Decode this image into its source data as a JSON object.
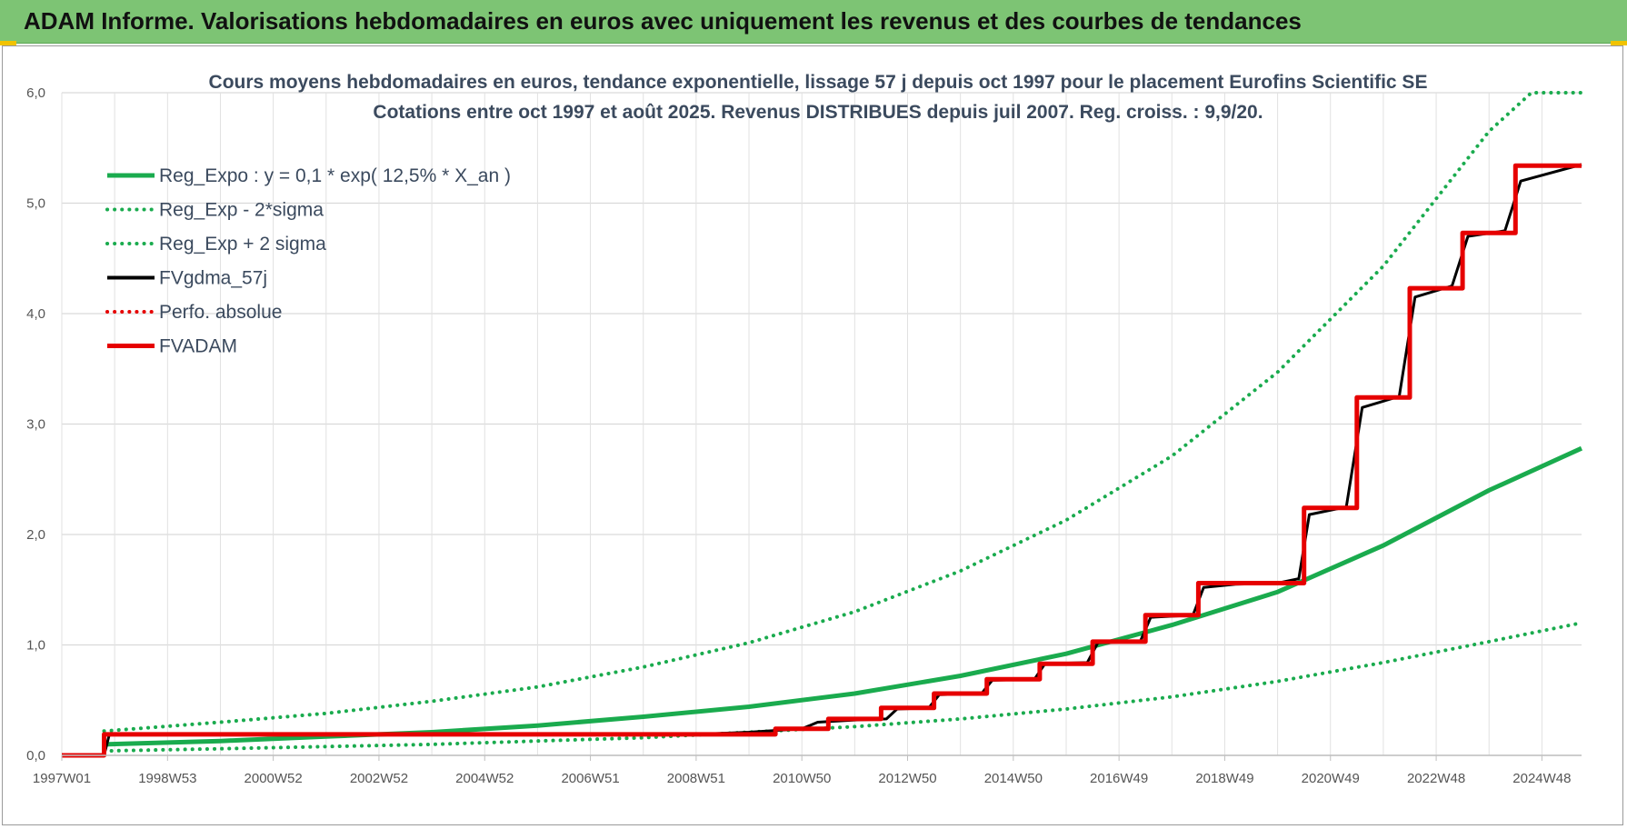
{
  "header": {
    "title": "ADAM Informe. Valorisations hebdomadaires en euros avec uniquement les revenus et des courbes de tendances",
    "background_color": "#7dc474"
  },
  "chart_data": {
    "type": "line",
    "title_lines": [
      "Cours moyens hebdomadaires en euros, tendance exponentielle, lissage 57 j depuis oct 1997 pour le placement Eurofins Scientific SE",
      "Cotations entre oct 1997 et août 2025.  Revenus DISTRIBUES depuis juil 2007.  Reg. croiss. : 9,9/20."
    ],
    "xlabel": "",
    "ylabel": "",
    "x_range": [
      1997.0,
      2025.75
    ],
    "ylim": [
      0,
      6
    ],
    "y_ticks": [
      "0,0",
      "1,0",
      "2,0",
      "3,0",
      "4,0",
      "5,0",
      "6,0"
    ],
    "x_tick_labels": [
      "1997W01",
      "1998W53",
      "2000W52",
      "2002W52",
      "2004W52",
      "2006W51",
      "2008W51",
      "2010W50",
      "2012W50",
      "2014W50",
      "2016W49",
      "2018W49",
      "2020W49",
      "2022W48",
      "2024W48"
    ],
    "x_tick_positions": [
      1997.0,
      1999.0,
      2001.0,
      2003.0,
      2005.0,
      2007.0,
      2009.0,
      2011.0,
      2013.0,
      2015.0,
      2017.0,
      2019.0,
      2021.0,
      2023.0,
      2025.0
    ],
    "grid": true,
    "legend_position": "top-left",
    "series": [
      {
        "name": "Reg_Expo : y = 0,1 * exp( 12,5% *  X_an )",
        "color": "#1aab4e",
        "style": "solid",
        "points": [
          [
            1997.8,
            0.1
          ],
          [
            2000,
            0.13
          ],
          [
            2002,
            0.17
          ],
          [
            2004,
            0.21
          ],
          [
            2006,
            0.27
          ],
          [
            2008,
            0.35
          ],
          [
            2010,
            0.44
          ],
          [
            2012,
            0.56
          ],
          [
            2014,
            0.72
          ],
          [
            2016,
            0.92
          ],
          [
            2018,
            1.18
          ],
          [
            2020,
            1.48
          ],
          [
            2022,
            1.9
          ],
          [
            2024,
            2.4
          ],
          [
            2025.75,
            2.78
          ]
        ]
      },
      {
        "name": "Reg_Exp - 2*sigma",
        "color": "#1aab4e",
        "style": "dotted",
        "points": [
          [
            1997.8,
            0.04
          ],
          [
            2000,
            0.06
          ],
          [
            2002,
            0.08
          ],
          [
            2004,
            0.1
          ],
          [
            2006,
            0.13
          ],
          [
            2008,
            0.16
          ],
          [
            2010,
            0.21
          ],
          [
            2012,
            0.26
          ],
          [
            2014,
            0.33
          ],
          [
            2016,
            0.42
          ],
          [
            2018,
            0.53
          ],
          [
            2020,
            0.67
          ],
          [
            2022,
            0.84
          ],
          [
            2024,
            1.03
          ],
          [
            2025.75,
            1.2
          ]
        ]
      },
      {
        "name": "Reg_Exp + 2 sigma",
        "color": "#1aab4e",
        "style": "dotted",
        "points": [
          [
            1997.8,
            0.22
          ],
          [
            2000,
            0.3
          ],
          [
            2002,
            0.38
          ],
          [
            2004,
            0.49
          ],
          [
            2006,
            0.62
          ],
          [
            2008,
            0.8
          ],
          [
            2010,
            1.02
          ],
          [
            2012,
            1.3
          ],
          [
            2014,
            1.67
          ],
          [
            2016,
            2.13
          ],
          [
            2018,
            2.71
          ],
          [
            2020,
            3.47
          ],
          [
            2022,
            4.43
          ],
          [
            2024,
            5.65
          ],
          [
            2024.8,
            6.0
          ],
          [
            2025.75,
            6.0
          ]
        ]
      },
      {
        "name": "FVgdma_57j",
        "color": "#000000",
        "style": "solid",
        "points": [
          [
            1997.0,
            0.0
          ],
          [
            1997.8,
            0.0
          ],
          [
            1997.9,
            0.19
          ],
          [
            2009,
            0.19
          ],
          [
            2010,
            0.21
          ],
          [
            2011,
            0.24
          ],
          [
            2011.3,
            0.3
          ],
          [
            2012,
            0.32
          ],
          [
            2012.6,
            0.33
          ],
          [
            2012.8,
            0.42
          ],
          [
            2013.4,
            0.43
          ],
          [
            2013.6,
            0.55
          ],
          [
            2014.4,
            0.56
          ],
          [
            2014.6,
            0.68
          ],
          [
            2015.4,
            0.69
          ],
          [
            2015.6,
            0.83
          ],
          [
            2016.4,
            0.84
          ],
          [
            2016.6,
            1.02
          ],
          [
            2017.4,
            1.03
          ],
          [
            2017.6,
            1.25
          ],
          [
            2018.4,
            1.27
          ],
          [
            2018.6,
            1.52
          ],
          [
            2019.2,
            1.55
          ],
          [
            2020.0,
            1.56
          ],
          [
            2020.4,
            1.6
          ],
          [
            2020.6,
            2.18
          ],
          [
            2021.3,
            2.25
          ],
          [
            2021.6,
            3.15
          ],
          [
            2022.3,
            3.25
          ],
          [
            2022.6,
            4.15
          ],
          [
            2023.3,
            4.25
          ],
          [
            2023.6,
            4.7
          ],
          [
            2024.3,
            4.75
          ],
          [
            2024.6,
            5.2
          ],
          [
            2025.75,
            5.35
          ]
        ]
      },
      {
        "name": "Perfo. absolue",
        "color": "#e60000",
        "style": "dotted",
        "points": []
      },
      {
        "name": "FVADAM",
        "color": "#e60000",
        "style": "solid",
        "points": [
          [
            1997.0,
            0.0
          ],
          [
            1997.8,
            0.0
          ],
          [
            1997.8,
            0.19
          ],
          [
            2010.5,
            0.19
          ],
          [
            2010.5,
            0.24
          ],
          [
            2011.5,
            0.24
          ],
          [
            2011.5,
            0.33
          ],
          [
            2012.5,
            0.33
          ],
          [
            2012.5,
            0.43
          ],
          [
            2013.5,
            0.43
          ],
          [
            2013.5,
            0.56
          ],
          [
            2014.5,
            0.56
          ],
          [
            2014.5,
            0.69
          ],
          [
            2015.5,
            0.69
          ],
          [
            2015.5,
            0.83
          ],
          [
            2016.5,
            0.83
          ],
          [
            2016.5,
            1.03
          ],
          [
            2017.5,
            1.03
          ],
          [
            2017.5,
            1.27
          ],
          [
            2018.5,
            1.27
          ],
          [
            2018.5,
            1.56
          ],
          [
            2020.5,
            1.56
          ],
          [
            2020.5,
            2.24
          ],
          [
            2021.5,
            2.24
          ],
          [
            2021.5,
            3.24
          ],
          [
            2022.5,
            3.24
          ],
          [
            2022.5,
            4.23
          ],
          [
            2023.5,
            4.23
          ],
          [
            2023.5,
            4.73
          ],
          [
            2024.5,
            4.73
          ],
          [
            2024.5,
            5.34
          ],
          [
            2025.75,
            5.34
          ]
        ]
      }
    ]
  }
}
